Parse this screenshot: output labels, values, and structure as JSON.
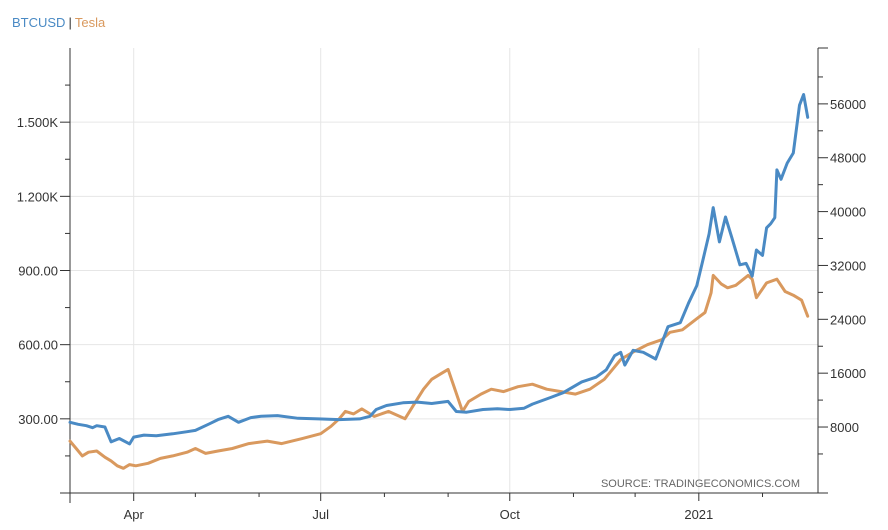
{
  "legend": {
    "series_a": "BTCUSD",
    "separator": "|",
    "series_b": "Tesla"
  },
  "colors": {
    "btc": "#4a8ac4",
    "tesla": "#d9995e",
    "grid": "#e6e6e6",
    "axis": "#333333"
  },
  "chart_data": {
    "type": "line",
    "title": "",
    "xlabel": "",
    "ylabel": "",
    "source": "SOURCE: TRADINGECONOMICS.COM",
    "x_ticks": [
      {
        "label": "Apr",
        "date": "2020-04-01"
      },
      {
        "label": "Jul",
        "date": "2020-07-01"
      },
      {
        "label": "Oct",
        "date": "2020-10-01"
      },
      {
        "label": "2021",
        "date": "2021-01-01"
      }
    ],
    "xlim": [
      "2020-03-01",
      "2021-02-28"
    ],
    "y_left": {
      "ticks": [
        300,
        600,
        900,
        1200,
        1500
      ],
      "tick_labels": [
        "300.00",
        "600.00",
        "900.00",
        "1.200K",
        "1.500K"
      ],
      "range": [
        0,
        1800
      ]
    },
    "y_right": {
      "ticks": [
        8000,
        16000,
        24000,
        32000,
        40000,
        48000,
        56000
      ],
      "tick_labels": [
        "8000",
        "16000",
        "24000",
        "32000",
        "40000",
        "48000",
        "56000"
      ],
      "range": [
        -1800,
        64300
      ]
    },
    "grid": true,
    "series": [
      {
        "name": "BTCUSD",
        "axis": "right",
        "points": [
          [
            "2020-03-01",
            8700
          ],
          [
            "2020-03-05",
            8400
          ],
          [
            "2020-03-09",
            8200
          ],
          [
            "2020-03-12",
            7900
          ],
          [
            "2020-03-14",
            8200
          ],
          [
            "2020-03-18",
            8000
          ],
          [
            "2020-03-21",
            5800
          ],
          [
            "2020-03-25",
            6300
          ],
          [
            "2020-03-30",
            5500
          ],
          [
            "2020-04-01",
            6500
          ],
          [
            "2020-04-06",
            6800
          ],
          [
            "2020-04-12",
            6700
          ],
          [
            "2020-04-20",
            7000
          ],
          [
            "2020-04-27",
            7300
          ],
          [
            "2020-05-01",
            7500
          ],
          [
            "2020-05-08",
            8500
          ],
          [
            "2020-05-12",
            9100
          ],
          [
            "2020-05-17",
            9600
          ],
          [
            "2020-05-22",
            8700
          ],
          [
            "2020-05-28",
            9400
          ],
          [
            "2020-06-02",
            9600
          ],
          [
            "2020-06-10",
            9700
          ],
          [
            "2020-06-20",
            9300
          ],
          [
            "2020-06-30",
            9200
          ],
          [
            "2020-07-10",
            9100
          ],
          [
            "2020-07-20",
            9200
          ],
          [
            "2020-07-25",
            9600
          ],
          [
            "2020-07-28",
            10600
          ],
          [
            "2020-08-02",
            11200
          ],
          [
            "2020-08-10",
            11600
          ],
          [
            "2020-08-17",
            11700
          ],
          [
            "2020-08-24",
            11500
          ],
          [
            "2020-09-01",
            11800
          ],
          [
            "2020-09-05",
            10300
          ],
          [
            "2020-09-10",
            10200
          ],
          [
            "2020-09-18",
            10600
          ],
          [
            "2020-09-25",
            10700
          ],
          [
            "2020-10-01",
            10600
          ],
          [
            "2020-10-08",
            10800
          ],
          [
            "2020-10-12",
            11400
          ],
          [
            "2020-10-21",
            12400
          ],
          [
            "2020-10-27",
            13100
          ],
          [
            "2020-11-05",
            14700
          ],
          [
            "2020-11-12",
            15400
          ],
          [
            "2020-11-17",
            16500
          ],
          [
            "2020-11-21",
            18600
          ],
          [
            "2020-11-24",
            19100
          ],
          [
            "2020-11-26",
            17200
          ],
          [
            "2020-11-30",
            19400
          ],
          [
            "2020-12-05",
            19100
          ],
          [
            "2020-12-11",
            18100
          ],
          [
            "2020-12-17",
            22900
          ],
          [
            "2020-12-23",
            23500
          ],
          [
            "2020-12-27",
            26400
          ],
          [
            "2020-12-31",
            29000
          ],
          [
            "2021-01-03",
            32800
          ],
          [
            "2021-01-06",
            36700
          ],
          [
            "2021-01-08",
            40600
          ],
          [
            "2021-01-11",
            35500
          ],
          [
            "2021-01-14",
            39200
          ],
          [
            "2021-01-17",
            36200
          ],
          [
            "2021-01-21",
            32100
          ],
          [
            "2021-01-24",
            32300
          ],
          [
            "2021-01-27",
            30400
          ],
          [
            "2021-01-29",
            34300
          ],
          [
            "2021-02-01",
            33500
          ],
          [
            "2021-02-03",
            37600
          ],
          [
            "2021-02-05",
            38200
          ],
          [
            "2021-02-07",
            39100
          ],
          [
            "2021-02-08",
            46200
          ],
          [
            "2021-02-10",
            44800
          ],
          [
            "2021-02-13",
            47200
          ],
          [
            "2021-02-16",
            48700
          ],
          [
            "2021-02-19",
            55800
          ],
          [
            "2021-02-21",
            57400
          ],
          [
            "2021-02-23",
            54000
          ]
        ]
      },
      {
        "name": "Tesla",
        "axis": "left",
        "points": [
          [
            "2020-03-01",
            210
          ],
          [
            "2020-03-04",
            180
          ],
          [
            "2020-03-07",
            150
          ],
          [
            "2020-03-10",
            165
          ],
          [
            "2020-03-14",
            170
          ],
          [
            "2020-03-18",
            145
          ],
          [
            "2020-03-21",
            130
          ],
          [
            "2020-03-24",
            110
          ],
          [
            "2020-03-27",
            100
          ],
          [
            "2020-03-30",
            115
          ],
          [
            "2020-04-02",
            110
          ],
          [
            "2020-04-08",
            120
          ],
          [
            "2020-04-14",
            140
          ],
          [
            "2020-04-20",
            150
          ],
          [
            "2020-04-27",
            165
          ],
          [
            "2020-05-01",
            180
          ],
          [
            "2020-05-06",
            160
          ],
          [
            "2020-05-12",
            170
          ],
          [
            "2020-05-19",
            180
          ],
          [
            "2020-05-27",
            200
          ],
          [
            "2020-06-05",
            210
          ],
          [
            "2020-06-12",
            200
          ],
          [
            "2020-06-22",
            220
          ],
          [
            "2020-07-01",
            240
          ],
          [
            "2020-07-06",
            270
          ],
          [
            "2020-07-10",
            300
          ],
          [
            "2020-07-13",
            330
          ],
          [
            "2020-07-17",
            320
          ],
          [
            "2020-07-21",
            340
          ],
          [
            "2020-07-27",
            310
          ],
          [
            "2020-08-03",
            330
          ],
          [
            "2020-08-11",
            300
          ],
          [
            "2020-08-17",
            380
          ],
          [
            "2020-08-20",
            420
          ],
          [
            "2020-08-24",
            460
          ],
          [
            "2020-08-28",
            480
          ],
          [
            "2020-09-01",
            500
          ],
          [
            "2020-09-08",
            330
          ],
          [
            "2020-09-11",
            370
          ],
          [
            "2020-09-17",
            400
          ],
          [
            "2020-09-22",
            420
          ],
          [
            "2020-09-28",
            410
          ],
          [
            "2020-10-05",
            430
          ],
          [
            "2020-10-12",
            440
          ],
          [
            "2020-10-19",
            420
          ],
          [
            "2020-10-26",
            410
          ],
          [
            "2020-11-02",
            400
          ],
          [
            "2020-11-09",
            420
          ],
          [
            "2020-11-16",
            460
          ],
          [
            "2020-11-20",
            500
          ],
          [
            "2020-11-24",
            540
          ],
          [
            "2020-11-30",
            570
          ],
          [
            "2020-12-07",
            600
          ],
          [
            "2020-12-14",
            620
          ],
          [
            "2020-12-18",
            650
          ],
          [
            "2020-12-24",
            660
          ],
          [
            "2020-12-31",
            705
          ],
          [
            "2021-01-04",
            730
          ],
          [
            "2021-01-07",
            810
          ],
          [
            "2021-01-08",
            880
          ],
          [
            "2021-01-12",
            845
          ],
          [
            "2021-01-15",
            830
          ],
          [
            "2021-01-19",
            840
          ],
          [
            "2021-01-25",
            880
          ],
          [
            "2021-01-27",
            865
          ],
          [
            "2021-01-29",
            790
          ],
          [
            "2021-02-03",
            850
          ],
          [
            "2021-02-08",
            865
          ],
          [
            "2021-02-12",
            815
          ],
          [
            "2021-02-16",
            800
          ],
          [
            "2021-02-20",
            780
          ],
          [
            "2021-02-23",
            715
          ]
        ]
      }
    ]
  }
}
